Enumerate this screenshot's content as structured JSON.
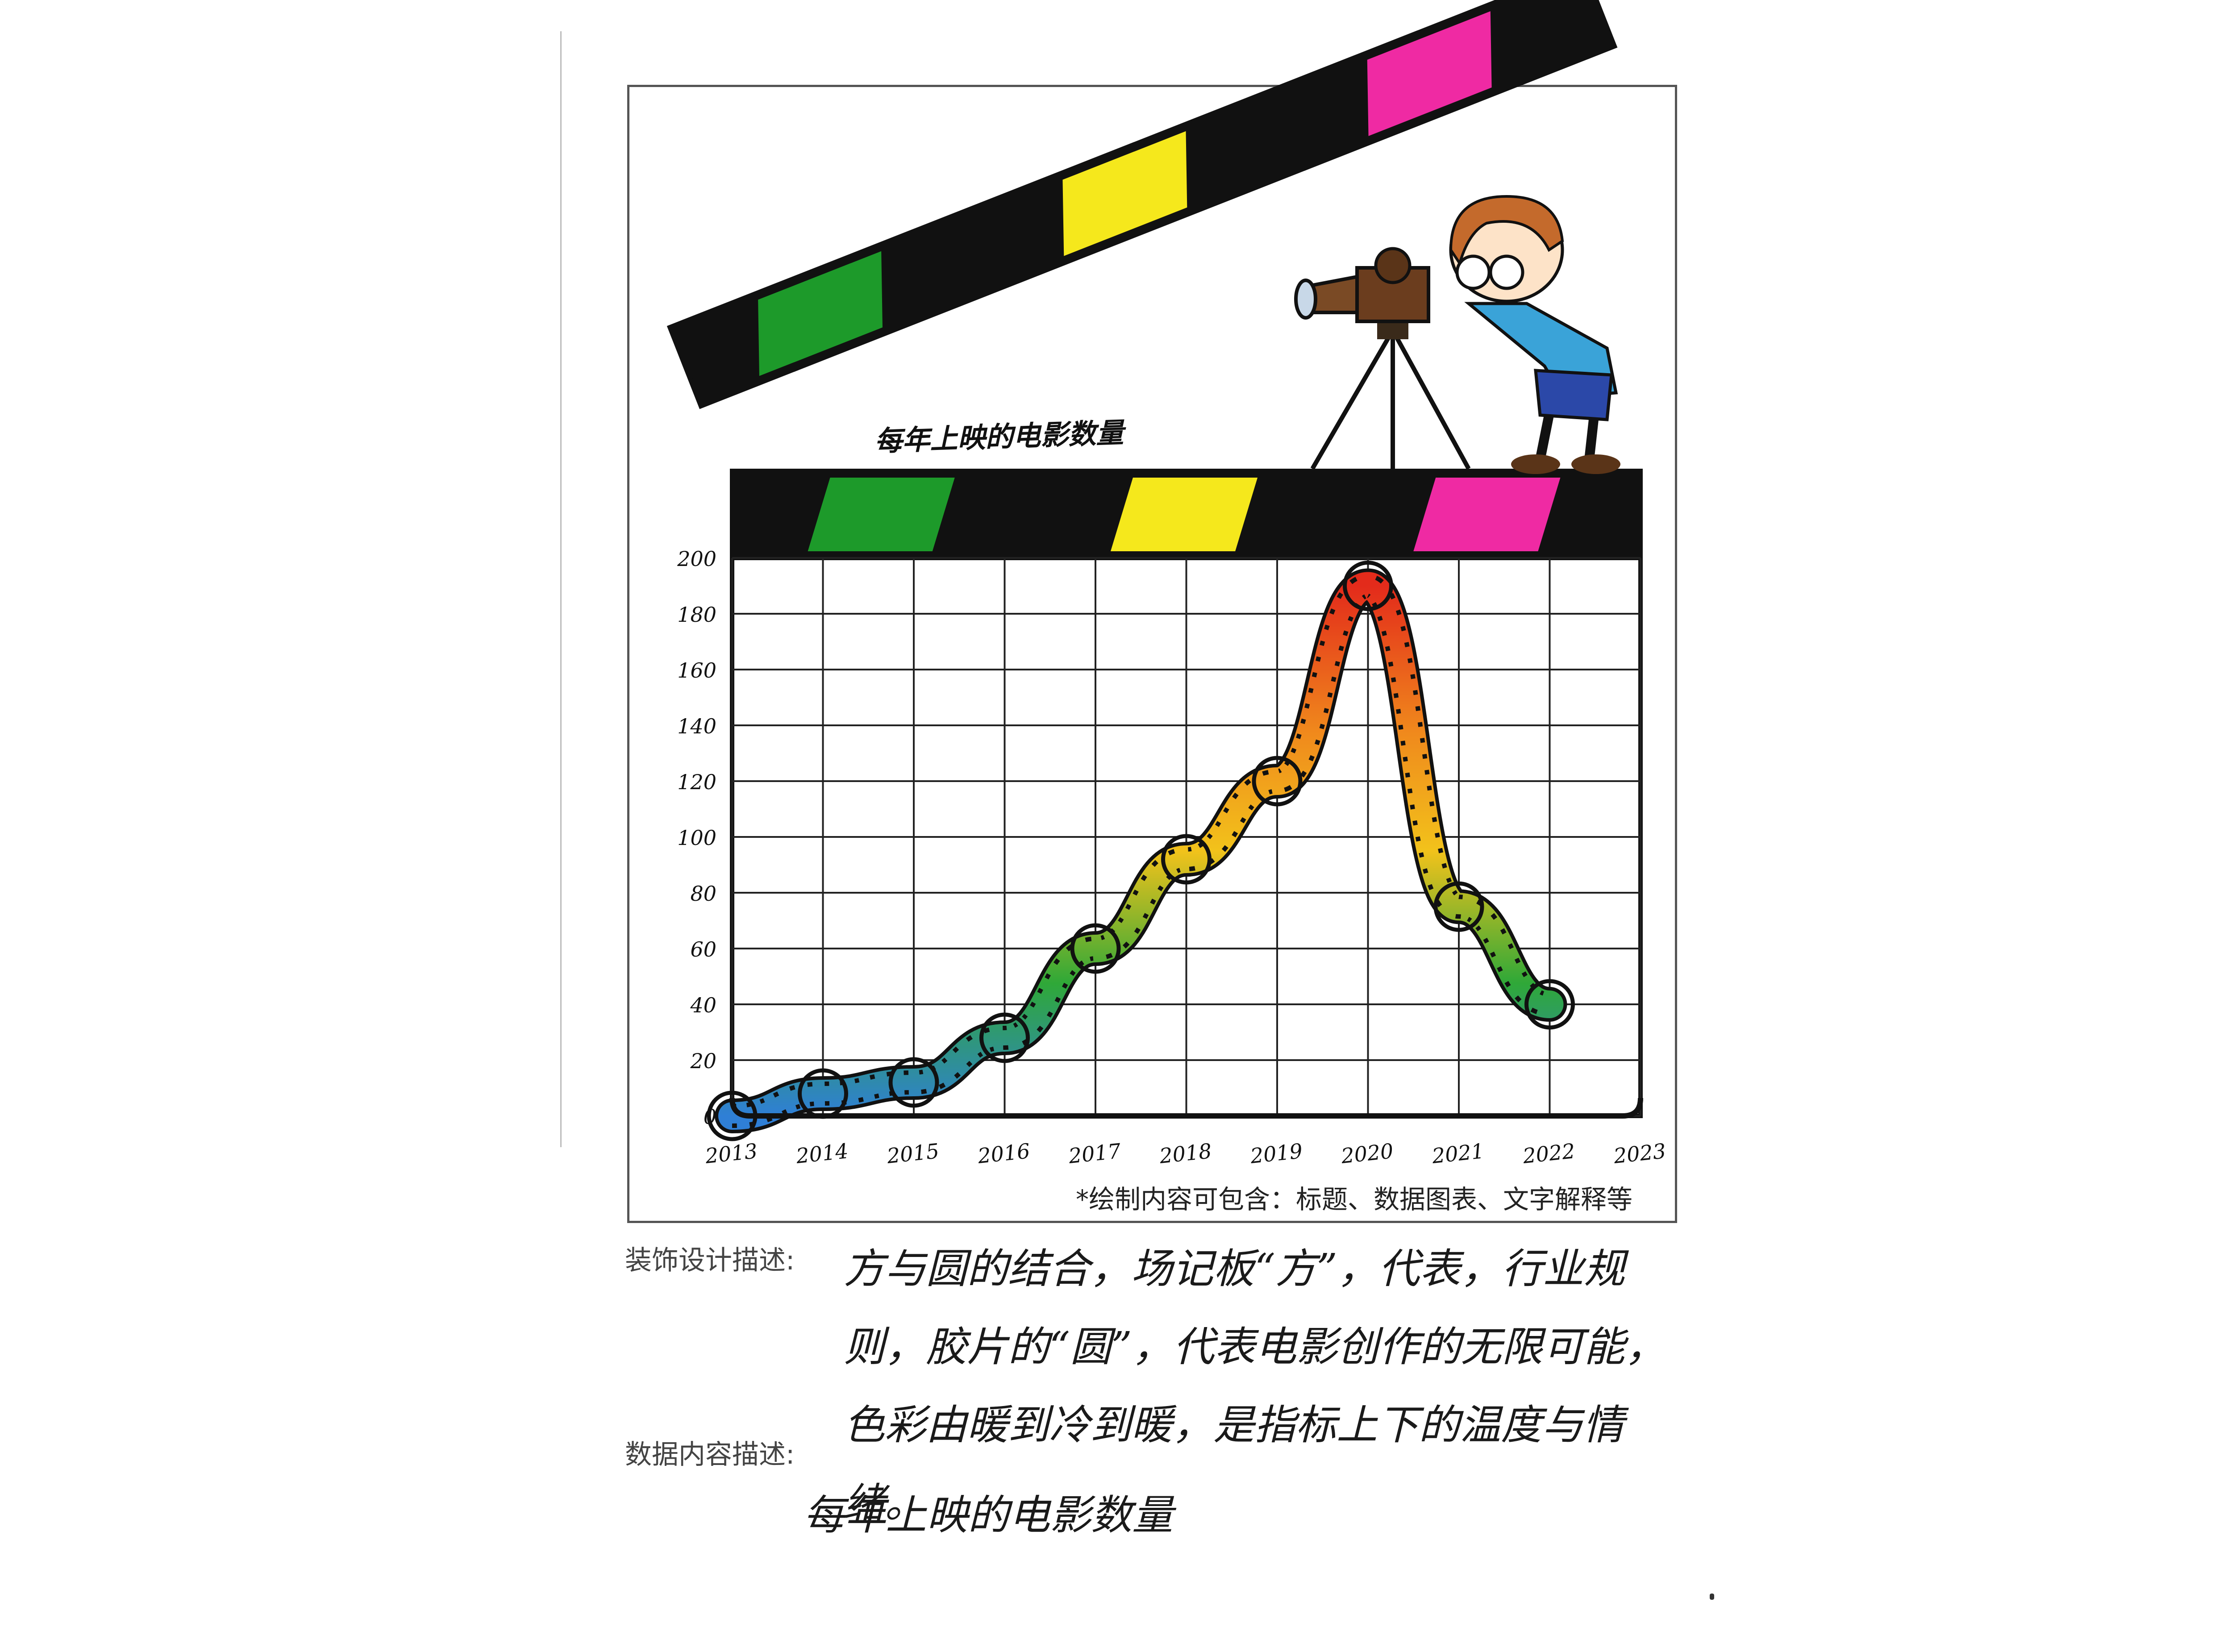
{
  "chart_data": {
    "type": "line",
    "title": "每年上映的电影数量",
    "xlabel": "",
    "ylabel": "",
    "x": [
      "2013",
      "2014",
      "2015",
      "2016",
      "2017",
      "2018",
      "2019",
      "2020",
      "2021",
      "2022",
      "2023"
    ],
    "series": [
      {
        "values": [
          0,
          8,
          12,
          28,
          60,
          92,
          120,
          190,
          75,
          40,
          null
        ]
      }
    ],
    "ylim": [
      0,
      200
    ],
    "yticks": [
      0,
      20,
      40,
      60,
      80,
      100,
      120,
      140,
      160,
      180,
      200
    ],
    "grid": true,
    "legend": "none",
    "line_style": "filmstrip",
    "gradient_colors": [
      "#2f7fd6",
      "#2fa838",
      "#f2c21b",
      "#f08a1c",
      "#e32b1b"
    ]
  },
  "clapperboard": {
    "stripe_colors": [
      "#1d9a2a",
      "#111111",
      "#f5e81c",
      "#111111",
      "#ef2aa3"
    ]
  },
  "notes": {
    "print_note": "*绘制内容可包含：标题、数据图表、文字解释等",
    "deco_label": "装饰设计描述:",
    "deco_text": "方与圆的结合，场记板“方”，代表，行业规则，胶片的“圆”，代表电影创作的无限可能，色彩由暖到冷到暖，是指标上下的温度与情绪。",
    "data_label": "数据内容描述:",
    "data_text": "每年上映的电影数量"
  }
}
